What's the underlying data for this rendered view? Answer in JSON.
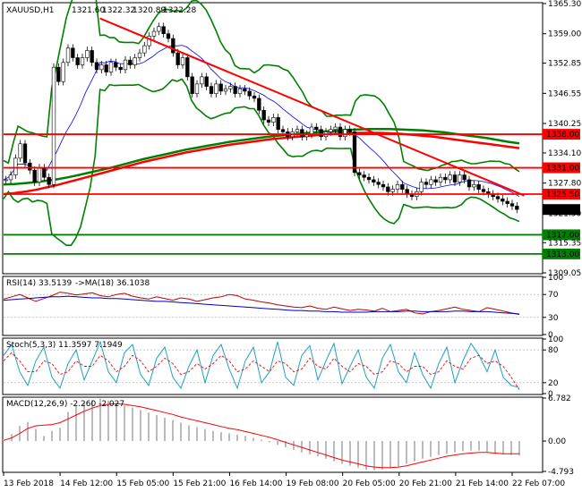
{
  "chart_data": {
    "type": "line",
    "main": {
      "title": "XAUUSD,H1",
      "ohlc": [
        "1321.60",
        "1322.32",
        "1320.89",
        "1322.28"
      ],
      "ylim": [
        1309.05,
        1365.3
      ],
      "y_ticks": [
        1365.3,
        1359.0,
        1352.85,
        1346.55,
        1340.25,
        1334.1,
        1327.8,
        1321.5,
        1315.35,
        1309.05
      ],
      "y_tick_labels": [
        "1365.30",
        "1359.00",
        "1352.85",
        "1346.55",
        "1340.25",
        "1334.10",
        "1327.80",
        "1321.50",
        "1315.35",
        "1309.05"
      ],
      "current_price": {
        "value": 1322.28,
        "label": "1322.28"
      },
      "levels": [
        {
          "value": 1338.0,
          "label": "1338.00",
          "color": "#ff0000"
        },
        {
          "value": 1331.0,
          "label": "1331.00",
          "color": "#ff0000"
        },
        {
          "value": 1325.5,
          "label": "1325.50",
          "color": "#ff0000"
        },
        {
          "value": 1317.0,
          "label": "1317.00",
          "color": "#008000"
        },
        {
          "value": 1313.0,
          "label": "1313.00",
          "color": "#008000"
        }
      ],
      "trendline": {
        "from": [
          20,
          1362.2
        ],
        "to": [
          108,
          1325.2
        ],
        "color": "#ff0000"
      },
      "price_series": [
        1328.5,
        1329.5,
        1333.0,
        1336.0,
        1332.0,
        1330.5,
        1328.0,
        1331.0,
        1329.0,
        1327.5,
        1352.0,
        1349.0,
        1353.0,
        1356.0,
        1354.0,
        1352.5,
        1354.0,
        1355.5,
        1353.0,
        1351.5,
        1352.5,
        1351.0,
        1353.0,
        1352.0,
        1351.5,
        1353.5,
        1352.5,
        1354.0,
        1355.0,
        1356.5,
        1358.5,
        1359.5,
        1360.5,
        1359.0,
        1358.0,
        1355.0,
        1352.5,
        1354.0,
        1350.0,
        1346.5,
        1348.5,
        1350.0,
        1348.0,
        1346.5,
        1348.5,
        1347.0,
        1347.5,
        1348.0,
        1346.5,
        1347.5,
        1347.0,
        1346.0,
        1345.5,
        1343.0,
        1341.0,
        1340.5,
        1341.5,
        1339.0,
        1338.5,
        1337.5,
        1338.5,
        1339.0,
        1337.5,
        1338.0,
        1339.5,
        1339.0,
        1337.5,
        1338.5,
        1339.0,
        1339.5,
        1337.5,
        1339.0,
        1338.5,
        1330.0,
        1329.5,
        1329.0,
        1328.5,
        1328.0,
        1327.5,
        1327.0,
        1326.0,
        1326.5,
        1327.5,
        1326.5,
        1325.5,
        1325.0,
        1326.0,
        1328.0,
        1327.5,
        1328.5,
        1328.0,
        1329.0,
        1328.5,
        1329.5,
        1328.0,
        1329.5,
        1328.5,
        1327.0,
        1327.5,
        1326.5,
        1326.0,
        1325.5,
        1325.0,
        1324.5,
        1324.0,
        1323.5,
        1323.0,
        1322.3
      ],
      "ma_slow": [
        1327.5,
        1327.6,
        1327.8,
        1328.0,
        1328.3,
        1328.6,
        1329.0,
        1329.5,
        1330.0,
        1330.5,
        1331.0,
        1331.6,
        1332.2,
        1332.8,
        1333.3,
        1333.8,
        1334.3,
        1334.8,
        1335.2,
        1335.6,
        1336.0,
        1336.4,
        1336.7,
        1337.0,
        1337.3,
        1337.6,
        1337.8,
        1338.0,
        1338.2,
        1338.4,
        1338.6,
        1338.8,
        1338.9,
        1339.0,
        1339.1,
        1339.1,
        1339.1,
        1339.0,
        1338.9,
        1338.8,
        1338.6,
        1338.4,
        1338.1,
        1337.8,
        1337.5,
        1337.2,
        1336.8,
        1336.4,
        1336.1
      ],
      "ma_slow2": [
        1325.5,
        1325.7,
        1326.0,
        1326.4,
        1326.9,
        1327.4,
        1328.0,
        1328.6,
        1329.2,
        1329.8,
        1330.4,
        1331.0,
        1331.6,
        1332.2,
        1332.7,
        1333.2,
        1333.7,
        1334.2,
        1334.6,
        1335.0,
        1335.4,
        1335.8,
        1336.1,
        1336.4,
        1336.7,
        1337.0,
        1337.2,
        1337.4,
        1337.6,
        1337.8,
        1338.0,
        1338.1,
        1338.2,
        1338.3,
        1338.3,
        1338.3,
        1338.2,
        1338.1,
        1337.9,
        1337.7,
        1337.5,
        1337.2,
        1336.9,
        1336.6,
        1336.3,
        1336.0,
        1335.7,
        1335.4,
        1335.1
      ]
    },
    "rsi": {
      "title": "RSI(14) 33.5139",
      "ma_label": "->MA(18) 36.1038",
      "ylim": [
        0,
        100
      ],
      "y_ticks": [
        100,
        70,
        30,
        0
      ],
      "y_tick_labels": [
        "100",
        "70",
        "30",
        "0"
      ],
      "series": [
        62,
        66,
        70,
        64,
        58,
        63,
        68,
        74,
        72,
        69,
        71,
        73,
        68,
        66,
        70,
        72,
        67,
        64,
        62,
        66,
        63,
        60,
        64,
        62,
        58,
        61,
        64,
        66,
        70,
        68,
        62,
        60,
        57,
        55,
        52,
        50,
        48,
        47,
        50,
        46,
        44,
        48,
        45,
        42,
        44,
        43,
        41,
        46,
        40,
        42,
        44,
        38,
        36,
        40,
        42,
        45,
        48,
        44,
        42,
        40,
        47,
        44,
        41,
        38,
        35
      ],
      "ma": [
        60,
        61,
        62,
        63,
        64,
        65,
        66,
        66,
        67,
        66,
        65,
        64,
        64,
        63,
        63,
        62,
        61,
        60,
        59,
        58,
        58,
        57,
        56,
        55,
        54,
        53,
        52,
        51,
        50,
        49,
        48,
        47,
        46,
        45,
        44,
        43,
        42,
        42,
        41,
        41,
        40,
        40,
        39,
        39,
        39,
        39,
        40,
        40,
        40,
        40,
        41,
        41,
        40,
        40,
        40,
        40,
        41,
        41,
        40,
        40,
        40,
        39,
        38,
        37,
        36
      ]
    },
    "stoch": {
      "title": "Stoch(5,3,3) 11.3597 7.1949",
      "ylim": [
        0,
        100
      ],
      "y_ticks": [
        100,
        80,
        20,
        0
      ],
      "y_tick_labels": [
        "100",
        "80",
        "20",
        "0"
      ],
      "k": [
        70,
        90,
        40,
        15,
        60,
        85,
        30,
        10,
        55,
        80,
        25,
        60,
        95,
        40,
        20,
        75,
        90,
        35,
        15,
        65,
        85,
        30,
        10,
        50,
        80,
        20,
        70,
        90,
        45,
        10,
        60,
        85,
        20,
        40,
        95,
        30,
        15,
        70,
        88,
        25,
        60,
        92,
        18,
        50,
        80,
        30,
        10,
        65,
        90,
        40,
        20,
        75,
        35,
        10,
        55,
        85,
        20,
        60,
        92,
        70,
        40,
        80,
        30,
        15,
        11
      ],
      "d": [
        60,
        75,
        60,
        40,
        40,
        60,
        55,
        35,
        40,
        60,
        50,
        50,
        70,
        60,
        40,
        50,
        70,
        60,
        40,
        50,
        65,
        55,
        35,
        40,
        55,
        45,
        55,
        70,
        60,
        40,
        45,
        60,
        50,
        40,
        60,
        55,
        40,
        45,
        65,
        50,
        45,
        65,
        50,
        40,
        55,
        50,
        35,
        40,
        60,
        55,
        40,
        50,
        50,
        35,
        40,
        60,
        50,
        45,
        65,
        70,
        55,
        60,
        50,
        30,
        7
      ]
    },
    "macd": {
      "title": "MACD(12,26,9) -2.260 -2.027",
      "ylim": [
        -4.793,
        6.782
      ],
      "y_ticks": [
        6.782,
        0.0,
        -4.793
      ],
      "y_tick_labels": [
        "6.782",
        "0.00",
        "-4.793"
      ],
      "histogram": [
        0.3,
        1.1,
        2.4,
        3.0,
        1.9,
        0.8,
        1.6,
        2.1,
        4.6,
        5.6,
        6.0,
        6.5,
        6.7,
        6.4,
        6.0,
        5.6,
        5.3,
        4.9,
        4.5,
        4.1,
        3.7,
        3.3,
        2.9,
        2.5,
        2.2,
        1.9,
        1.6,
        1.4,
        1.2,
        1.0,
        0.8,
        0.5,
        0.2,
        -0.2,
        -0.6,
        -1.0,
        -1.4,
        -1.8,
        -2.1,
        -2.4,
        -2.8,
        -3.2,
        -3.6,
        -3.9,
        -4.2,
        -4.5,
        -4.6,
        -4.5,
        -4.3,
        -4.0,
        -3.6,
        -3.2,
        -2.8,
        -2.5,
        -2.2,
        -2.0,
        -1.8,
        -1.6,
        -1.5,
        -1.5,
        -1.7,
        -1.9,
        -2.1,
        -2.2,
        -2.3
      ],
      "signal": [
        0.1,
        0.5,
        1.2,
        2.0,
        2.4,
        2.5,
        2.6,
        2.9,
        3.5,
        4.1,
        4.7,
        5.2,
        5.6,
        5.8,
        5.9,
        5.8,
        5.6,
        5.4,
        5.1,
        4.8,
        4.5,
        4.2,
        3.8,
        3.5,
        3.2,
        2.9,
        2.6,
        2.3,
        2.0,
        1.8,
        1.5,
        1.2,
        0.9,
        0.6,
        0.2,
        -0.2,
        -0.6,
        -1.0,
        -1.4,
        -1.8,
        -2.2,
        -2.6,
        -3.0,
        -3.3,
        -3.6,
        -3.9,
        -4.1,
        -4.2,
        -4.2,
        -4.1,
        -3.9,
        -3.6,
        -3.3,
        -3.0,
        -2.7,
        -2.4,
        -2.2,
        -2.0,
        -1.9,
        -1.8,
        -1.8,
        -1.9,
        -2.0,
        -2.0,
        -2.0
      ]
    },
    "x_tick_labels": [
      "13 Feb 2018",
      "14 Feb 12:00",
      "15 Feb 05:00",
      "15 Feb 21:00",
      "16 Feb 14:00",
      "19 Feb 08:00",
      "20 Feb 05:00",
      "20 Feb 21:00",
      "21 Feb 14:00",
      "22 Feb 07:00"
    ]
  }
}
